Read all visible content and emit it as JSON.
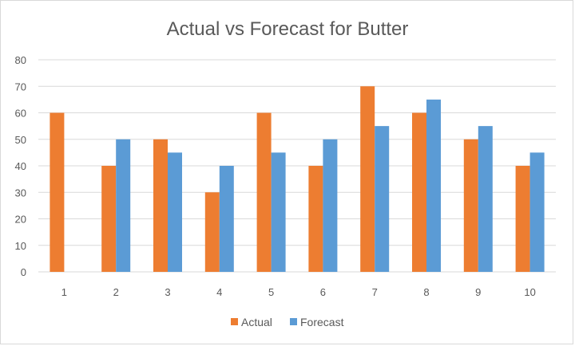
{
  "chart_data": {
    "type": "bar",
    "title": "Actual vs Forecast for Butter",
    "xlabel": "",
    "ylabel": "",
    "categories": [
      "1",
      "2",
      "3",
      "4",
      "5",
      "6",
      "7",
      "8",
      "9",
      "10"
    ],
    "series": [
      {
        "name": "Actual",
        "color": "#ed7d31",
        "values": [
          60,
          40,
          50,
          30,
          60,
          40,
          70,
          60,
          50,
          40
        ]
      },
      {
        "name": "Forecast",
        "color": "#5b9bd5",
        "values": [
          null,
          50,
          45,
          40,
          45,
          50,
          55,
          65,
          55,
          45
        ]
      }
    ],
    "ylim": [
      0,
      80
    ],
    "yticks": [
      0,
      10,
      20,
      30,
      40,
      50,
      60,
      70,
      80
    ],
    "grid": true,
    "legend": "bottom-center"
  }
}
